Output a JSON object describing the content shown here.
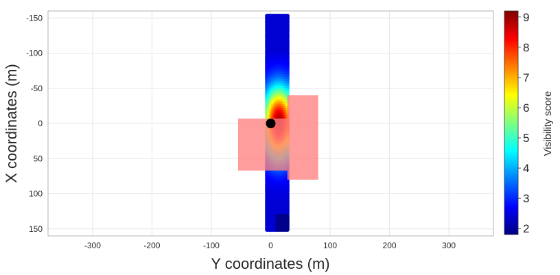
{
  "chart_data": {
    "type": "scatter",
    "xlabel": "Y coordinates (m)",
    "ylabel": "X coordinates (m)",
    "xlim": [
      -375,
      375
    ],
    "ylim": [
      -160,
      160
    ],
    "y_reversed": true,
    "x_ticks": [
      "-300",
      "-200",
      "-100",
      "0",
      "100",
      "200",
      "300"
    ],
    "x_tick_values": [
      -300,
      -200,
      -100,
      0,
      100,
      200,
      300
    ],
    "y_ticks": [
      "-150",
      "-100",
      "-50",
      "0",
      "50",
      "100",
      "150"
    ],
    "y_tick_values": [
      -150,
      -100,
      -50,
      0,
      50,
      100,
      150
    ],
    "grid": true,
    "colorbar": {
      "title": "Visibility score",
      "range": [
        1.8,
        9.2
      ],
      "ticks": [
        "2",
        "3",
        "4",
        "5",
        "6",
        "7",
        "8",
        "9"
      ],
      "tick_values": [
        2,
        3,
        4,
        5,
        6,
        7,
        8,
        9
      ],
      "colormap": "jet"
    },
    "marker_corridor": {
      "y_range": [
        -6,
        28
      ],
      "x_range": [
        -153,
        153
      ]
    },
    "rectangles": [
      {
        "y_range": [
          -55,
          28
        ],
        "x_range": [
          -7,
          67
        ],
        "color": "#ff8080"
      },
      {
        "y_range": [
          28,
          80
        ],
        "x_range": [
          -40,
          80
        ],
        "color": "#ff8080"
      }
    ],
    "observer": {
      "y": 0,
      "x": 0,
      "color": "#000000"
    }
  }
}
